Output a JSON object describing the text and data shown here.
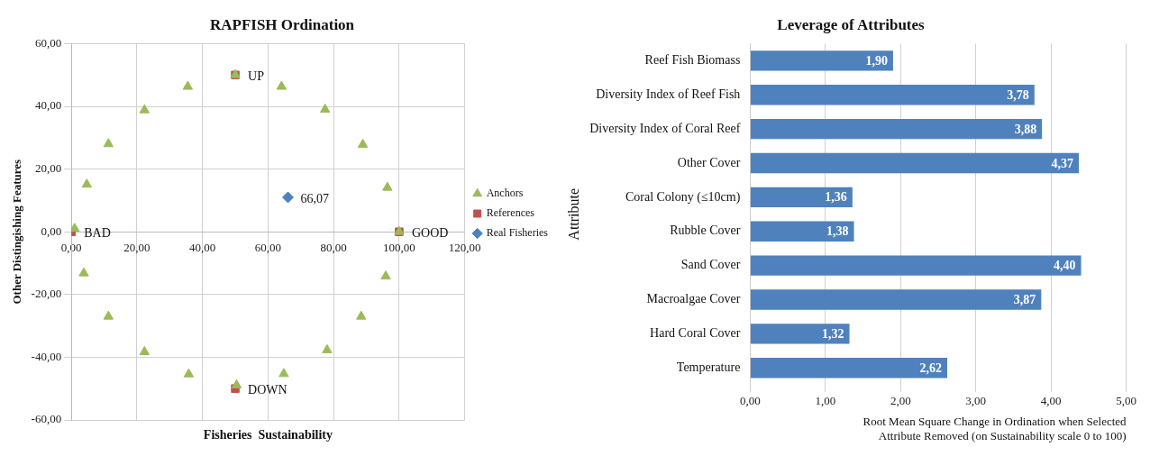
{
  "chart_data": [
    {
      "type": "scatter",
      "title": "RAPFISH Ordination",
      "xlabel": "Fisheries  Sustainability",
      "ylabel": "Other Distingishing Features",
      "xlim": [
        0,
        120
      ],
      "xticks": [
        {
          "value": 0,
          "label": "0,00"
        },
        {
          "value": 20,
          "label": "20,00"
        },
        {
          "value": 40,
          "label": "40,00"
        },
        {
          "value": 60,
          "label": "60,00"
        },
        {
          "value": 80,
          "label": "80,00"
        },
        {
          "value": 100,
          "label": "100,00"
        },
        {
          "value": 120,
          "label": "120,00"
        }
      ],
      "ylim": [
        -60,
        60
      ],
      "yticks": [
        {
          "value": -60,
          "label": "-60,00"
        },
        {
          "value": -40,
          "label": "-40,00"
        },
        {
          "value": -20,
          "label": "-20,00"
        },
        {
          "value": 0,
          "label": "0,00"
        },
        {
          "value": 20,
          "label": "20,00"
        },
        {
          "value": 40,
          "label": "40,00"
        },
        {
          "value": 60,
          "label": "60,00"
        }
      ],
      "grid": true,
      "legend": "right",
      "series": [
        {
          "name": "Real Fisheries",
          "color": "#4f81bd",
          "marker": "diamond",
          "x": [
            66.07
          ],
          "values": [
            11
          ]
        },
        {
          "name": "References",
          "color": "#c0504d",
          "marker": "square",
          "x": [
            0,
            100,
            50,
            50
          ],
          "values": [
            0,
            0,
            50,
            -50
          ]
        },
        {
          "name": "Anchors",
          "color": "#9bbb59",
          "marker": "triangle",
          "x": [
            50,
            35.5,
            22.3,
            11.3,
            4.7,
            1,
            3.8,
            11.3,
            22.3,
            35.8,
            50.4,
            64.8,
            78,
            88.4,
            95.9,
            100,
            96.4,
            88.9,
            77.4,
            64.1
          ],
          "values": [
            50,
            46.3,
            38.8,
            28,
            15.1,
            1,
            -13.2,
            -27,
            -38.3,
            -45.4,
            -48.9,
            -45.3,
            -37.7,
            -27,
            -14.2,
            0,
            14.1,
            27.8,
            39,
            46.3
          ]
        }
      ],
      "annotations": [
        {
          "text": "66,07",
          "x": 66.07,
          "y": 11
        },
        {
          "text": "BAD",
          "x": 0,
          "y": 0
        },
        {
          "text": "GOOD",
          "x": 100,
          "y": 0
        },
        {
          "text": "UP",
          "x": 50,
          "y": 50
        },
        {
          "text": "DOWN",
          "x": 50,
          "y": -50
        }
      ]
    },
    {
      "type": "bar",
      "orientation": "horizontal",
      "title": "Leverage of Attributes",
      "ylabel": "Attribute",
      "xlabel": "Root Mean Square Change in Ordination when Selected Attribute Removed (on Sustainability scale 0 to 100)",
      "categories": [
        "Reef Fish Biomass",
        "Diversity Index of Reef Fish",
        "Diversity Index of Coral Reef",
        "Other Cover",
        "Coral Colony (≤10cm)",
        "Rubble Cover",
        "Sand Cover",
        "Macroalgae Cover",
        "Hard Coral Cover",
        "Temperature"
      ],
      "values": [
        1.9,
        3.78,
        3.88,
        4.37,
        1.36,
        1.38,
        4.4,
        3.87,
        1.32,
        2.62
      ],
      "value_labels": [
        "1,90",
        "3,78",
        "3,88",
        "4,37",
        "1,36",
        "1,38",
        "4,40",
        "3,87",
        "1,32",
        "2,62"
      ],
      "color": "#4f81bd",
      "xlim": [
        0,
        5
      ],
      "xticks": [
        {
          "value": 0,
          "label": "0,00"
        },
        {
          "value": 1,
          "label": "1,00"
        },
        {
          "value": 2,
          "label": "2,00"
        },
        {
          "value": 3,
          "label": "3,00"
        },
        {
          "value": 4,
          "label": "4,00"
        },
        {
          "value": 5,
          "label": "5,00"
        }
      ],
      "grid": "x"
    }
  ]
}
